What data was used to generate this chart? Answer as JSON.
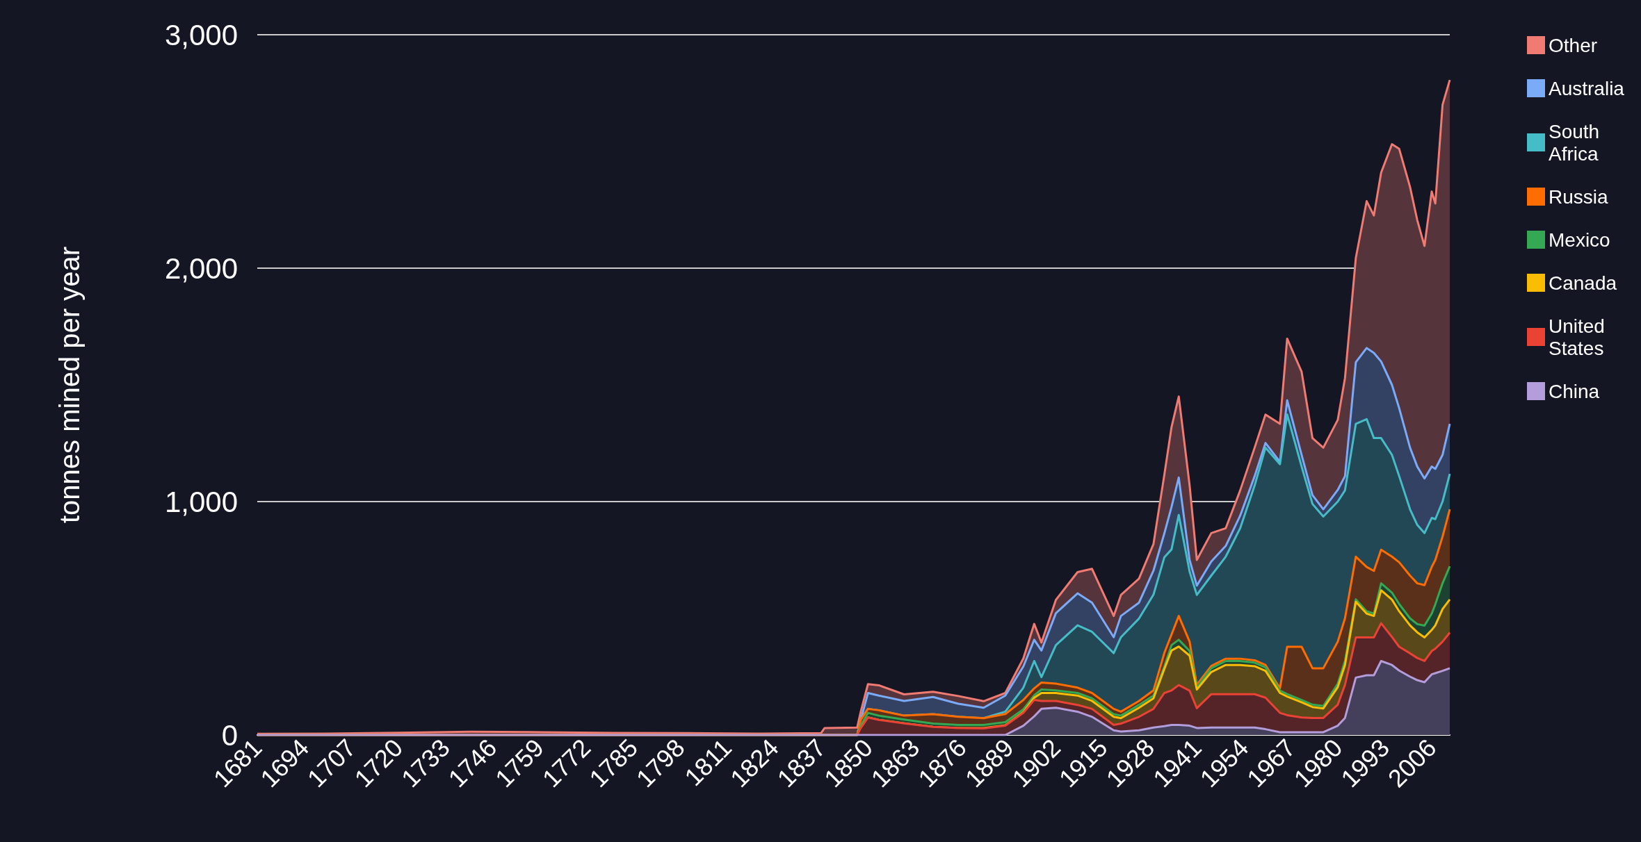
{
  "chart_data": {
    "type": "area",
    "ylabel": "tonnes mined per year",
    "stacked": true,
    "grid": "y",
    "legend": "top right",
    "marker": "none",
    "xlim": [
      1681,
      2011
    ],
    "xticks": [
      1681,
      1694,
      1707,
      1720,
      1733,
      1746,
      1759,
      1772,
      1785,
      1798,
      1811,
      1824,
      1837,
      1850,
      1863,
      1876,
      1889,
      1902,
      1915,
      1928,
      1941,
      1954,
      1967,
      1980,
      1993,
      2006
    ],
    "ylim": [
      0,
      3000
    ],
    "yticks": [
      {
        "value": 0,
        "label": "0"
      },
      {
        "value": 1000,
        "label": "1,000"
      },
      {
        "value": 2000,
        "label": "2,000"
      },
      {
        "value": 3000,
        "label": "3,000"
      }
    ],
    "x": [
      1681,
      1700,
      1720,
      1740,
      1760,
      1780,
      1800,
      1820,
      1837,
      1838,
      1847,
      1848,
      1850,
      1853,
      1860,
      1868,
      1875,
      1882,
      1888,
      1893,
      1896,
      1898,
      1902,
      1908,
      1912,
      1918,
      1920,
      1925,
      1929,
      1932,
      1934,
      1936,
      1939,
      1941,
      1945,
      1949,
      1953,
      1957,
      1960,
      1964,
      1966,
      1970,
      1973,
      1976,
      1980,
      1982,
      1985,
      1988,
      1990,
      1992,
      1995,
      1997,
      2000,
      2002,
      2004,
      2006,
      2007,
      2009,
      2011
    ],
    "series": [
      {
        "name": "China",
        "color": "#b39ddb",
        "values": [
          0,
          0,
          0,
          0,
          0,
          0,
          0,
          0,
          0,
          0,
          0,
          0,
          0,
          0,
          0,
          0,
          0,
          0,
          0,
          40,
          80,
          112,
          117,
          100,
          78,
          20,
          15,
          20,
          32,
          38,
          43,
          43,
          40,
          30,
          32,
          32,
          32,
          32,
          25,
          12,
          12,
          12,
          12,
          12,
          40,
          73,
          246,
          256,
          256,
          317,
          300,
          276,
          250,
          235,
          226,
          260,
          265,
          275,
          286
        ]
      },
      {
        "name": "United States",
        "color": "#ea4335",
        "values": [
          0,
          0,
          0,
          0,
          0,
          0,
          0,
          0,
          0,
          0,
          0,
          30,
          75,
          65,
          50,
          35,
          30,
          28,
          40,
          55,
          70,
          34,
          29,
          29,
          34,
          23,
          34,
          58,
          80,
          142,
          148,
          171,
          150,
          85,
          143,
          143,
          143,
          143,
          135,
          83,
          73,
          63,
          61,
          61,
          90,
          142,
          172,
          162,
          162,
          162,
          120,
          102,
          100,
          95,
          91,
          100,
          105,
          125,
          153
        ]
      },
      {
        "name": "Canada",
        "color": "#fbbc04",
        "values": [
          0,
          0,
          0,
          0,
          0,
          0,
          0,
          0,
          0,
          0,
          0,
          0,
          0,
          0,
          0,
          0,
          0,
          2,
          2,
          3,
          10,
          34,
          34,
          40,
          34,
          35,
          23,
          39,
          45,
          103,
          171,
          165,
          150,
          80,
          95,
          125,
          125,
          120,
          115,
          85,
          80,
          65,
          47,
          41,
          75,
          85,
          153,
          102,
          92,
          141,
          160,
          152,
          120,
          110,
          101,
          90,
          100,
          140,
          142
        ]
      },
      {
        "name": "Mexico",
        "color": "#34a853",
        "values": [
          0,
          0,
          0,
          0,
          0,
          0,
          0,
          0,
          0,
          0,
          0,
          10,
          20,
          18,
          16,
          14,
          13,
          13,
          13,
          12,
          10,
          15,
          11,
          11,
          11,
          11,
          11,
          12,
          12,
          11,
          23,
          29,
          20,
          10,
          16,
          17,
          17,
          15,
          15,
          10,
          10,
          10,
          10,
          10,
          15,
          17,
          10,
          10,
          10,
          30,
          30,
          31,
          30,
          35,
          51,
          70,
          90,
          110,
          142
        ]
      },
      {
        "name": "Russia",
        "color": "#ff6d01",
        "values": [
          0,
          0,
          0,
          0,
          0,
          0,
          0,
          0,
          0,
          0,
          0,
          25,
          17,
          23,
          17,
          40,
          35,
          29,
          35,
          40,
          30,
          30,
          29,
          23,
          23,
          23,
          17,
          17,
          22,
          57,
          46,
          102,
          40,
          10,
          10,
          10,
          10,
          10,
          10,
          10,
          203,
          228,
          156,
          162,
          180,
          183,
          183,
          190,
          183,
          144,
          154,
          179,
          183,
          175,
          173,
          200,
          190,
          200,
          244
        ]
      },
      {
        "name": "South Africa",
        "color": "#46bdc6",
        "values": [
          0,
          0,
          0,
          0,
          0,
          0,
          0,
          0,
          0,
          0,
          0,
          0,
          0,
          0,
          0,
          0,
          0,
          0,
          10,
          53,
          117,
          23,
          165,
          267,
          262,
          239,
          319,
          353,
          410,
          410,
          364,
          433,
          300,
          385,
          387,
          437,
          559,
          749,
          931,
          960,
          995,
          772,
          704,
          650,
          600,
          548,
          569,
          633,
          569,
          478,
          436,
          369,
          284,
          250,
          223,
          210,
          175,
          150,
          152
        ]
      },
      {
        "name": "Australia",
        "color": "#7baaf7",
        "values": [
          0,
          0,
          0,
          0,
          0,
          0,
          0,
          0,
          0,
          0,
          0,
          0,
          68,
          63,
          63,
          74,
          56,
          45,
          69,
          91,
          91,
          114,
          137,
          137,
          125,
          68,
          91,
          68,
          103,
          102,
          182,
          160,
          50,
          40,
          60,
          46,
          54,
          40,
          20,
          10,
          61,
          50,
          38,
          31,
          50,
          61,
          264,
          305,
          365,
          328,
          300,
          291,
          264,
          250,
          234,
          220,
          215,
          200,
          214
        ]
      },
      {
        "name": "Other",
        "color": "#f07b72",
        "values": [
          5,
          6,
          10,
          14,
          12,
          9,
          8,
          6,
          8,
          30,
          32,
          35,
          38,
          44,
          28,
          22,
          33,
          28,
          11,
          34,
          68,
          34,
          57,
          91,
          145,
          91,
          90,
          103,
          114,
          251,
          342,
          347,
          320,
          110,
          122,
          76,
          108,
          122,
          122,
          163,
          264,
          356,
          244,
          264,
          300,
          420,
          447,
          629,
          589,
          809,
          1031,
          1111,
          1117,
          1056,
          996,
          1178,
          1137,
          1500,
          1473
        ]
      }
    ]
  }
}
